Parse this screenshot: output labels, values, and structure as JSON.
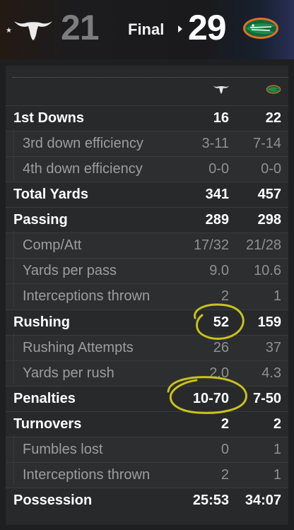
{
  "header": {
    "away_team": {
      "score": "21",
      "ranked_star": "★",
      "logo": "longhorn-logo",
      "color": "#e9e9e9"
    },
    "status": "Final",
    "home_team": {
      "score": "29",
      "logo": "gator-logo",
      "color": "#0b6a3a"
    }
  },
  "columns": {
    "away_icon": "longhorn-icon",
    "home_icon": "gator-icon"
  },
  "stats": [
    {
      "label": "1st Downs",
      "away": "16",
      "home": "22",
      "sub": false
    },
    {
      "label": "3rd down efficiency",
      "away": "3-11",
      "home": "7-14",
      "sub": true
    },
    {
      "label": "4th down efficiency",
      "away": "0-0",
      "home": "0-0",
      "sub": true
    },
    {
      "label": "Total Yards",
      "away": "341",
      "home": "457",
      "sub": false
    },
    {
      "label": "Passing",
      "away": "289",
      "home": "298",
      "sub": false
    },
    {
      "label": "Comp/Att",
      "away": "17/32",
      "home": "21/28",
      "sub": true
    },
    {
      "label": "Yards per pass",
      "away": "9.0",
      "home": "10.6",
      "sub": true
    },
    {
      "label": "Interceptions thrown",
      "away": "2",
      "home": "1",
      "sub": true
    },
    {
      "label": "Rushing",
      "away": "52",
      "home": "159",
      "sub": false
    },
    {
      "label": "Rushing Attempts",
      "away": "26",
      "home": "37",
      "sub": true
    },
    {
      "label": "Yards per rush",
      "away": "2.0",
      "home": "4.3",
      "sub": true
    },
    {
      "label": "Penalties",
      "away": "10-70",
      "home": "7-50",
      "sub": false
    },
    {
      "label": "Turnovers",
      "away": "2",
      "home": "2",
      "sub": false
    },
    {
      "label": "Fumbles lost",
      "away": "0",
      "home": "1",
      "sub": true
    },
    {
      "label": "Interceptions thrown",
      "away": "2",
      "home": "1",
      "sub": true
    },
    {
      "label": "Possession",
      "away": "25:53",
      "home": "34:07",
      "sub": false
    }
  ],
  "annotation": {
    "color": "#c8c21a"
  }
}
